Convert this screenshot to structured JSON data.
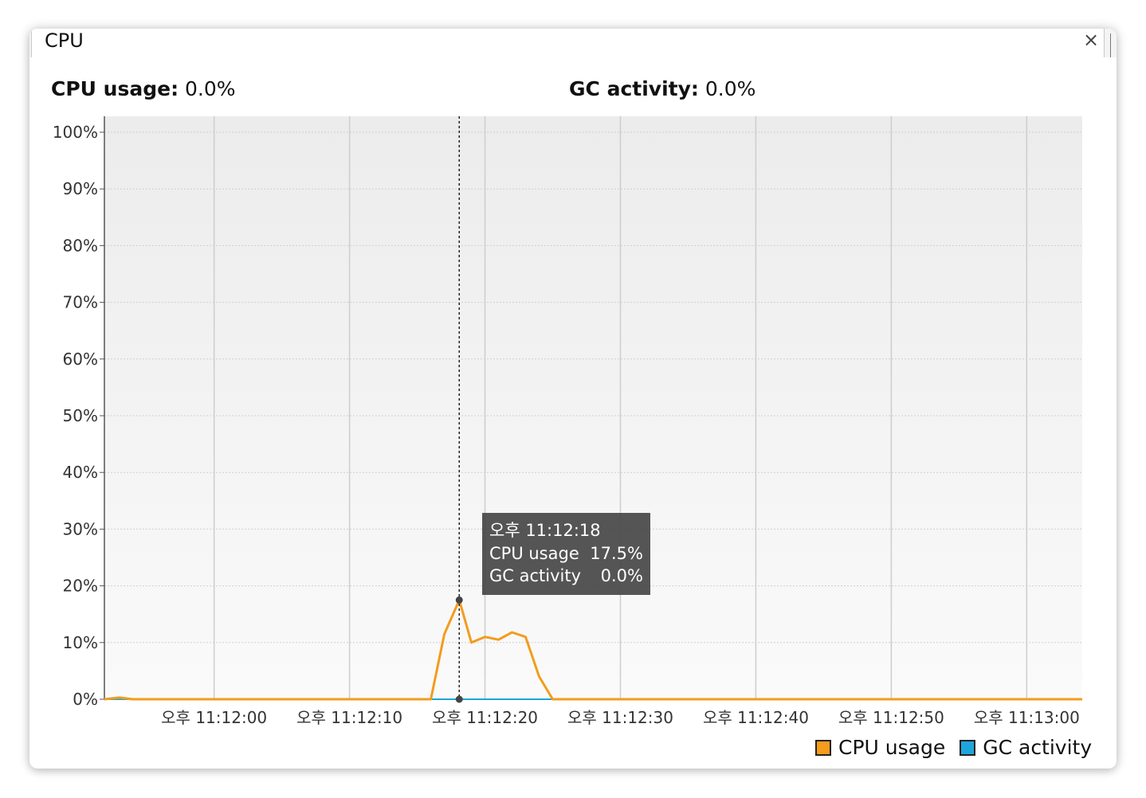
{
  "window": {
    "tab_title": "CPU",
    "close_label": "×"
  },
  "stats": {
    "cpu_label": "CPU usage:",
    "cpu_value": "0.0%",
    "gc_label": "GC activity:",
    "gc_value": "0.0%"
  },
  "tooltip": {
    "time": "오후 11:12:18",
    "rows": [
      {
        "label": "CPU usage",
        "value": "17.5%"
      },
      {
        "label": "GC activity",
        "value": "0.0%"
      }
    ]
  },
  "legend": [
    {
      "label": "CPU usage",
      "color": "#f39c1d"
    },
    {
      "label": "GC activity",
      "color": "#1ea5dc"
    }
  ],
  "chart_data": {
    "type": "line",
    "title": "",
    "xlabel": "",
    "ylabel": "",
    "y_ticks": [
      "0%",
      "10%",
      "20%",
      "30%",
      "40%",
      "50%",
      "60%",
      "70%",
      "80%",
      "90%",
      "100%"
    ],
    "ylim": [
      0,
      100
    ],
    "x_ticks": [
      "오후 11:12:00",
      "오후 11:12:10",
      "오후 11:12:20",
      "오후 11:12:30",
      "오후 11:12:40",
      "오후 11:12:50",
      "오후 11:13:00"
    ],
    "x_tick_seconds": [
      0,
      10,
      20,
      30,
      40,
      50,
      60
    ],
    "xlim_seconds": [
      -8.1,
      64.1
    ],
    "grid": true,
    "legend_position": "bottom-right",
    "cursor_seconds": 18.1,
    "series": [
      {
        "name": "CPU usage",
        "color": "#f39c1d",
        "x_seconds": [
          -8.1,
          -7.0,
          -6.0,
          16.0,
          17.0,
          18.1,
          19.0,
          20.0,
          21.0,
          22.0,
          23.0,
          24.0,
          25.0,
          64.1
        ],
        "values": [
          0.0,
          0.3,
          0.0,
          0.0,
          11.5,
          17.5,
          10.0,
          11.0,
          10.5,
          11.8,
          11.0,
          4.0,
          0.0,
          0.0
        ]
      },
      {
        "name": "GC activity",
        "color": "#1ea5dc",
        "x_seconds": [
          -8.1,
          64.1
        ],
        "values": [
          0.0,
          0.0
        ]
      }
    ]
  }
}
